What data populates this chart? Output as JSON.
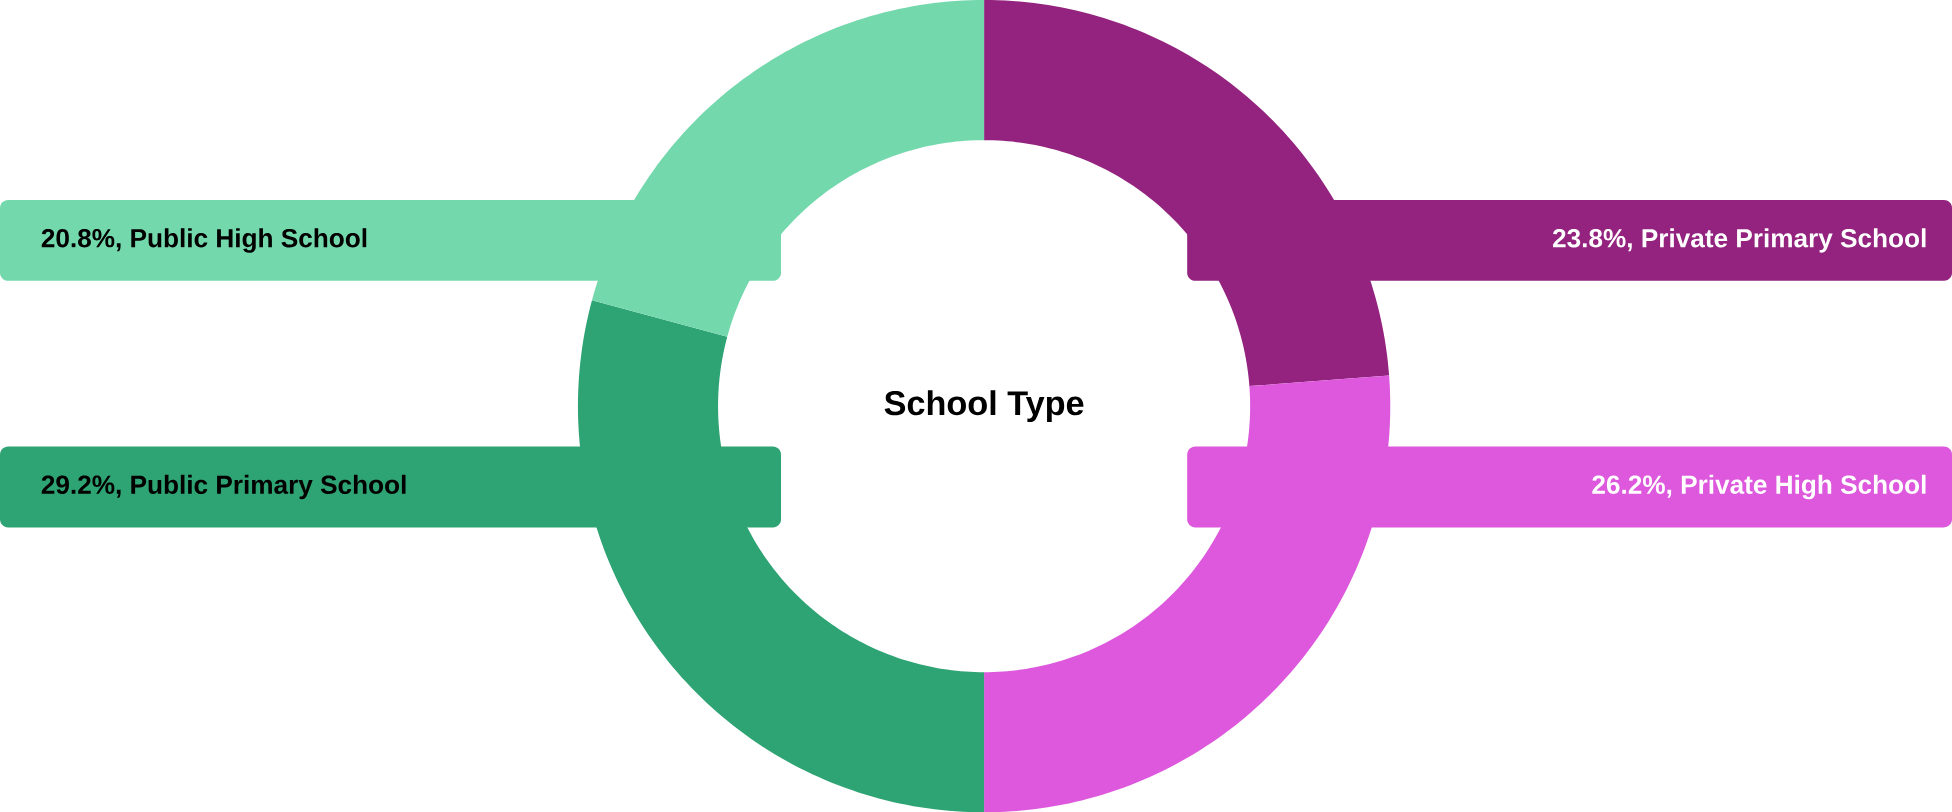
{
  "chart_data": {
    "type": "donut",
    "title": "School Type",
    "categories": [
      "Private Primary School",
      "Private High School",
      "Public Primary School",
      "Public High School"
    ],
    "values": [
      23.8,
      26.2,
      29.2,
      20.8
    ],
    "value_labels": [
      "23.8%,",
      "26.2%,",
      "29.2%,",
      "20.8%,"
    ],
    "colors": [
      "#93237f",
      "#dd58dd",
      "#2ea373",
      "#74d8ad"
    ]
  }
}
